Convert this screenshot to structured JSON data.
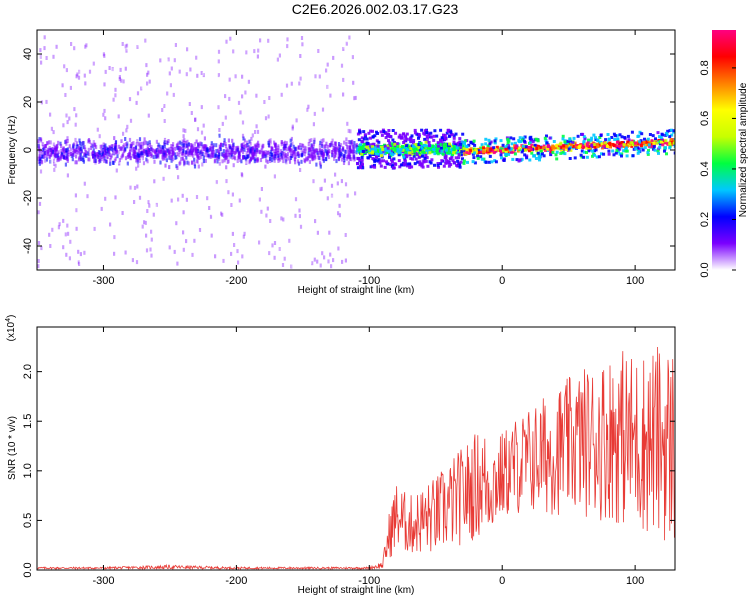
{
  "title": "C2E6.2026.002.03.17.G23",
  "colors": {
    "snr_line": "#e83a35",
    "axis": "#000000",
    "background": "#ffffff"
  },
  "chart_data": [
    {
      "type": "heatmap",
      "name": "spectrogram",
      "xlabel": "Height of straight line (km)",
      "ylabel": "Frequency (Hz)",
      "xlim": [
        -350,
        130
      ],
      "ylim": [
        -50,
        50
      ],
      "xticks": [
        -300,
        -200,
        -100,
        0,
        100
      ],
      "xtick_labels": [
        "-300",
        "-200",
        "-100",
        "0",
        "100"
      ],
      "yticks": [
        -40,
        -20,
        0,
        20,
        40
      ],
      "ytick_labels": [
        "-40",
        "-20",
        "0",
        "20",
        "40"
      ],
      "features": [
        {
          "x_range": [
            -350,
            -110
          ],
          "y_center": 0,
          "core_half_width_hz": 8,
          "scatter_half_width_hz": 48,
          "amplitude": 0.15
        },
        {
          "x_range": [
            -110,
            -30
          ],
          "y_center": 1,
          "core_half_width_hz": 4,
          "scatter_half_width_hz": 8,
          "amplitude": 0.45
        },
        {
          "x_range": [
            -30,
            130
          ],
          "y_center_start": 0,
          "y_center_end": 4,
          "core_half_width_hz": 2,
          "scatter_half_width_hz": 5,
          "amplitude": 0.85
        }
      ],
      "colorbar": {
        "label": "Normalized spectral amplitude",
        "range": [
          0.0,
          0.95
        ],
        "ticks": [
          0.0,
          0.2,
          0.4,
          0.6,
          0.8
        ],
        "tick_labels": [
          "0.0",
          "0.2",
          "0.4",
          "0.6",
          "0.8"
        ],
        "colors": [
          "#ffffff",
          "#7a00ff",
          "#0000ff",
          "#00c8ff",
          "#00ff40",
          "#c8ff00",
          "#ffff00",
          "#ff8000",
          "#ff0000",
          "#ff0080"
        ]
      }
    },
    {
      "type": "line",
      "name": "snr",
      "xlabel": "Height of straight line (km)",
      "ylabel": "SNR (10 * v/v)",
      "exponent_label": "(x10",
      "exponent_power": "4",
      "exponent_close": ")",
      "xlim": [
        -350,
        130
      ],
      "ylim": [
        0,
        2.45
      ],
      "xticks": [
        -300,
        -200,
        -100,
        0,
        100
      ],
      "xtick_labels": [
        "-300",
        "-200",
        "-100",
        "0",
        "100"
      ],
      "yticks": [
        0.0,
        0.5,
        1.0,
        1.5,
        2.0
      ],
      "ytick_labels": [
        "0.0",
        "0.5",
        "1.0",
        "1.5",
        "2.0"
      ],
      "x": [
        -350,
        -300,
        -250,
        -200,
        -150,
        -100,
        -90,
        -85,
        -80,
        -70,
        -60,
        -50,
        -40,
        -30,
        -20,
        -14,
        -10,
        0,
        10,
        20,
        30,
        40,
        50,
        60,
        70,
        80,
        90,
        100,
        110,
        120,
        130
      ],
      "envelope": [
        0.02,
        0.02,
        0.03,
        0.02,
        0.02,
        0.02,
        0.05,
        0.35,
        0.55,
        0.45,
        0.5,
        0.55,
        0.65,
        0.75,
        0.85,
        0.9,
        0.85,
        0.95,
        1.05,
        1.1,
        1.15,
        1.2,
        1.25,
        1.3,
        1.3,
        1.35,
        1.35,
        1.3,
        1.3,
        1.3,
        1.25
      ],
      "spread": [
        0.01,
        0.01,
        0.02,
        0.01,
        0.01,
        0.01,
        0.04,
        0.25,
        0.35,
        0.3,
        0.35,
        0.4,
        0.45,
        0.5,
        0.55,
        0.55,
        0.5,
        0.45,
        0.5,
        0.55,
        0.6,
        0.65,
        0.7,
        0.75,
        0.8,
        0.85,
        0.9,
        0.9,
        0.95,
        1.0,
        1.05
      ]
    }
  ]
}
